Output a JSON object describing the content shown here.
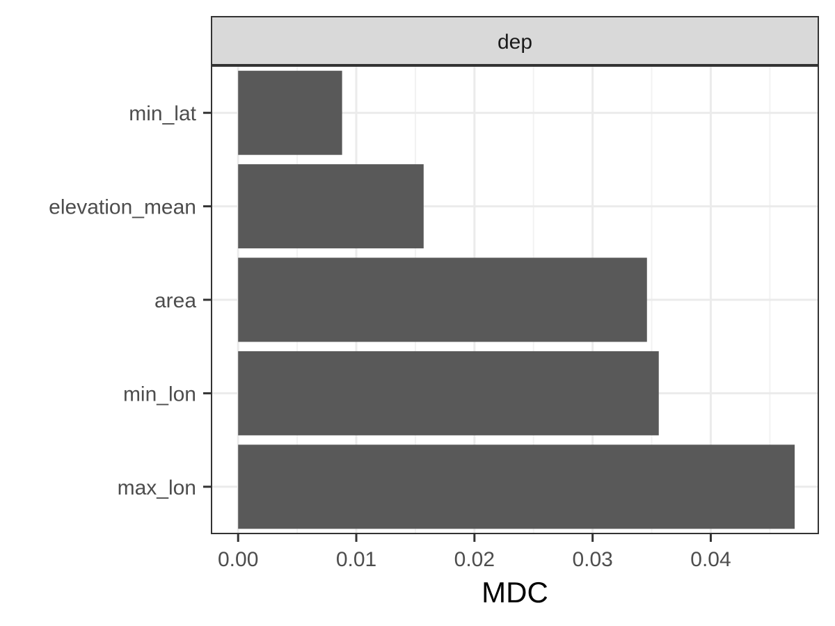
{
  "chart_data": {
    "type": "bar",
    "orientation": "horizontal",
    "facet_label": "dep",
    "categories": [
      "min_lat",
      "elevation_mean",
      "area",
      "min_lon",
      "max_lon"
    ],
    "values": [
      0.0088,
      0.0157,
      0.0346,
      0.0356,
      0.0471
    ],
    "xlabel": "MDC",
    "ylabel": "",
    "x_ticks": [
      "0.00",
      "0.01",
      "0.02",
      "0.03",
      "0.04"
    ],
    "x_tick_values": [
      0,
      0.01,
      0.02,
      0.03,
      0.04
    ],
    "xlim": [
      -0.00225,
      0.0491
    ],
    "grid": true,
    "colors": {
      "bar": "#595959",
      "strip_fill": "#d9d9d9",
      "panel_border": "#333333",
      "grid_major": "#ebebeb",
      "grid_minor": "#f2f2f2"
    }
  }
}
